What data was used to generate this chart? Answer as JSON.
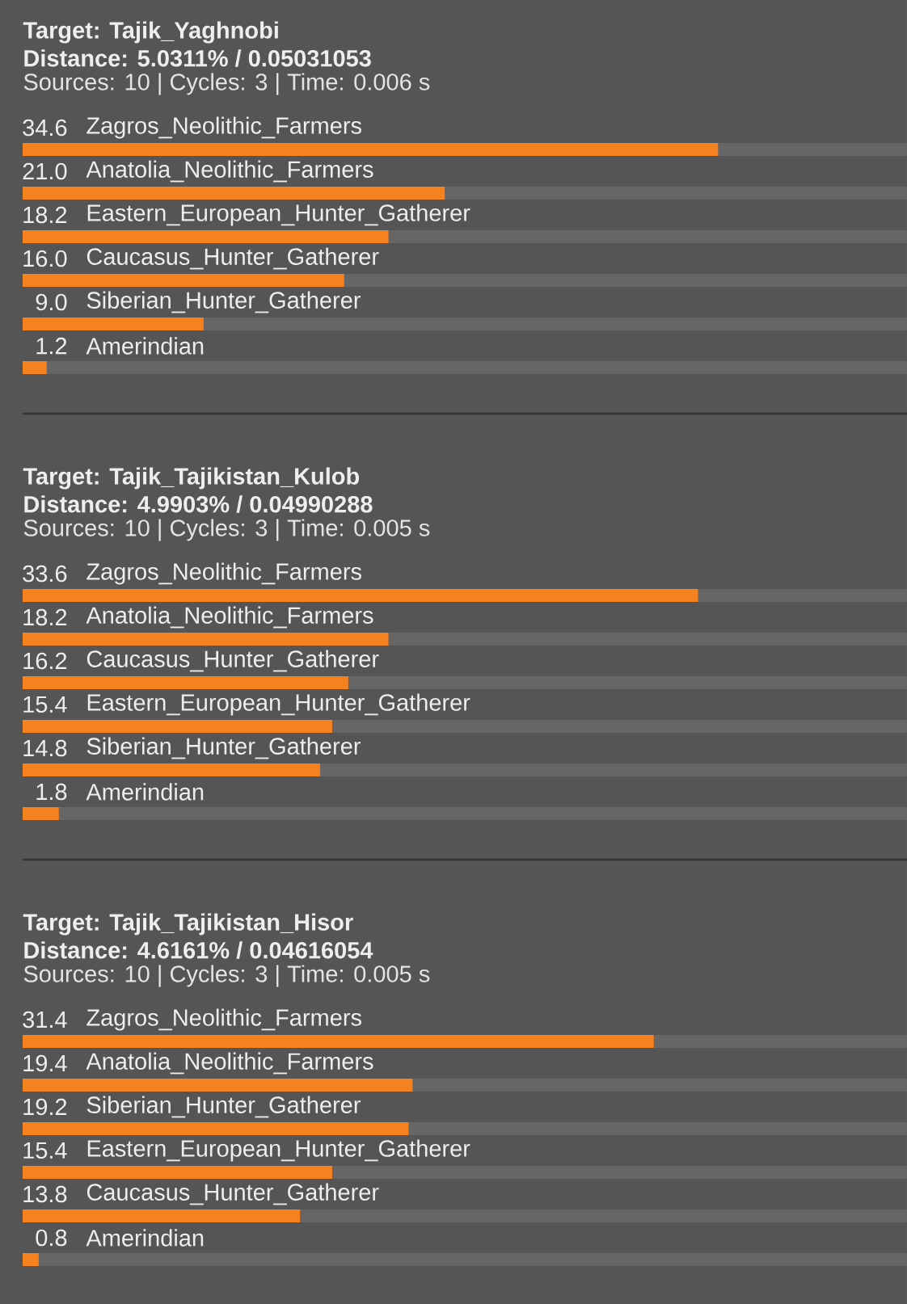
{
  "chart_data": [
    {
      "type": "bar",
      "orientation": "horizontal",
      "title": "Target: Tajik_Yaghnobi",
      "subtitle": "Distance: 5.0311% / 0.05031053",
      "annotations": [
        "Sources: 10 | Cycles: 3 | Time: 0.006 s"
      ],
      "categories": [
        "Zagros_Neolithic_Farmers",
        "Anatolia_Neolithic_Farmers",
        "Eastern_European_Hunter_Gatherer",
        "Caucasus_Hunter_Gatherer",
        "Siberian_Hunter_Gatherer",
        "Amerindian"
      ],
      "values": [
        34.6,
        21.0,
        18.2,
        16.0,
        9.0,
        1.2
      ],
      "value_labels": [
        "34.6",
        "21.0",
        "18.2",
        "16.0",
        "9.0",
        "1.2"
      ],
      "color": "#f5821f",
      "xlim": [
        0,
        44
      ]
    },
    {
      "type": "bar",
      "orientation": "horizontal",
      "title": "Target: Tajik_Tajikistan_Kulob",
      "subtitle": "Distance: 4.9903% / 0.04990288",
      "annotations": [
        "Sources: 10 | Cycles: 3 | Time: 0.005 s"
      ],
      "categories": [
        "Zagros_Neolithic_Farmers",
        "Anatolia_Neolithic_Farmers",
        "Caucasus_Hunter_Gatherer",
        "Eastern_European_Hunter_Gatherer",
        "Siberian_Hunter_Gatherer",
        "Amerindian"
      ],
      "values": [
        33.6,
        18.2,
        16.2,
        15.4,
        14.8,
        1.8
      ],
      "value_labels": [
        "33.6",
        "18.2",
        "16.2",
        "15.4",
        "14.8",
        "1.8"
      ],
      "color": "#f5821f",
      "xlim": [
        0,
        44
      ]
    },
    {
      "type": "bar",
      "orientation": "horizontal",
      "title": "Target: Tajik_Tajikistan_Hisor",
      "subtitle": "Distance: 4.6161% / 0.04616054",
      "annotations": [
        "Sources: 10 | Cycles: 3 | Time: 0.005 s"
      ],
      "categories": [
        "Zagros_Neolithic_Farmers",
        "Anatolia_Neolithic_Farmers",
        "Siberian_Hunter_Gatherer",
        "Eastern_European_Hunter_Gatherer",
        "Caucasus_Hunter_Gatherer",
        "Amerindian"
      ],
      "values": [
        31.4,
        19.4,
        19.2,
        15.4,
        13.8,
        0.8
      ],
      "value_labels": [
        "31.4",
        "19.4",
        "19.2",
        "15.4",
        "13.8",
        "0.8"
      ],
      "color": "#f5821f",
      "xlim": [
        0,
        44
      ]
    }
  ]
}
